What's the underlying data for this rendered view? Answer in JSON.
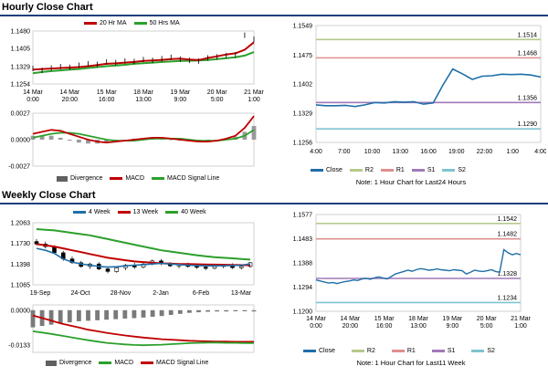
{
  "hourly": {
    "title": "Hourly Close Chart",
    "price_chart": {
      "type": "line",
      "legend": [
        {
          "name": "20 Hr MA",
          "color": "#c00000"
        },
        {
          "name": "50 Hrs MA",
          "color": "#2ca02c"
        }
      ],
      "y_ticks": [
        "1.1480",
        "1.1405",
        "1.1329",
        "1.1254"
      ],
      "ylim": [
        1.1254,
        1.148
      ],
      "x_ticks": [
        [
          "14 Mar",
          "0:00"
        ],
        [
          "14 Mar",
          "20:00"
        ],
        [
          "15 Mar",
          "16:00"
        ],
        [
          "18 Mar",
          "13:00"
        ],
        [
          "19 Mar",
          "9:00"
        ],
        [
          "20 Mar",
          "5:00"
        ],
        [
          "21 Mar",
          "1:00"
        ]
      ],
      "ma20": [
        1.1315,
        1.1318,
        1.132,
        1.1322,
        1.1324,
        1.1326,
        1.133,
        1.1335,
        1.134,
        1.1342,
        1.1345,
        1.1348,
        1.1352,
        1.1354,
        1.1357,
        1.136,
        1.1362,
        1.1358,
        1.1356,
        1.1365,
        1.1372,
        1.138,
        1.1385,
        1.14,
        1.1432
      ],
      "ma50": [
        1.13,
        1.1305,
        1.1309,
        1.1312,
        1.1315,
        1.1318,
        1.1322,
        1.1326,
        1.133,
        1.1333,
        1.1336,
        1.134,
        1.1343,
        1.1345,
        1.1348,
        1.135,
        1.1352,
        1.1353,
        1.1354,
        1.1356,
        1.136,
        1.1364,
        1.1368,
        1.1375,
        1.139
      ],
      "close": [
        1.132,
        1.1312,
        1.1322,
        1.1328,
        1.1325,
        1.1334,
        1.134,
        1.1338,
        1.1348,
        1.1345,
        1.1352,
        1.135,
        1.1358,
        1.1355,
        1.1362,
        1.1368,
        1.136,
        1.1355,
        1.1352,
        1.1365,
        1.137,
        1.1375,
        1.1378,
        1.1462,
        1.1445
      ]
    },
    "macd_chart": {
      "type": "line",
      "legend": [
        {
          "name": "Divergence",
          "color": "#808080",
          "kind": "bar"
        },
        {
          "name": "MACD",
          "color": "#c00000",
          "kind": "line"
        },
        {
          "name": "MACD Signal Line",
          "color": "#2ca02c",
          "kind": "line"
        }
      ],
      "y_ticks": [
        "0.0027",
        "0.0000",
        "-0.0027"
      ],
      "ylim": [
        -0.0027,
        0.0027
      ],
      "macd": [
        0.0006,
        0.0008,
        0.001,
        0.0009,
        0.0006,
        0.0003,
        0.0,
        -0.0002,
        -0.0003,
        -0.0002,
        -0.0001,
        0.0,
        0.0001,
        0.0002,
        0.0002,
        0.0001,
        0.0,
        -0.0001,
        -0.0002,
        -0.0002,
        -0.0001,
        0.0001,
        0.0004,
        0.0012,
        0.0024
      ],
      "signal": [
        0.0002,
        0.0004,
        0.0006,
        0.0007,
        0.0007,
        0.0006,
        0.0004,
        0.0002,
        0.0,
        -0.0001,
        -0.0001,
        -0.0001,
        0.0,
        0.0001,
        0.0001,
        0.0001,
        0.0001,
        0.0,
        -0.0001,
        -0.0001,
        -0.0001,
        0.0,
        0.0001,
        0.0004,
        0.001
      ],
      "divergence": [
        0.0004,
        0.0004,
        0.0004,
        0.0002,
        -0.0001,
        -0.0003,
        -0.0004,
        -0.0004,
        -0.0003,
        -0.0001,
        0.0,
        0.0001,
        0.0001,
        0.0001,
        0.0001,
        0.0,
        -0.0001,
        -0.0001,
        -0.0001,
        -0.0001,
        0.0,
        0.0001,
        0.0003,
        0.0008,
        0.0014
      ]
    },
    "pivot_chart": {
      "type": "line",
      "y_ticks": [
        "1.1549",
        "1.1475",
        "1.1402",
        "1.1329",
        "1.1256"
      ],
      "ylim": [
        1.1256,
        1.1549
      ],
      "x_ticks": [
        "4:00",
        "7:00",
        "10:00",
        "13:00",
        "16:00",
        "19:00",
        "22:00",
        "1:00",
        "4:00"
      ],
      "levels": [
        {
          "name": "R2",
          "value": 1.1514,
          "label": "1.1514",
          "color": "#b5c98a"
        },
        {
          "name": "R1",
          "value": 1.1468,
          "label": "1.1468",
          "color": "#e08f8f"
        },
        {
          "name": "S1",
          "value": 1.1356,
          "label": "1.1356",
          "color": "#a07ab8"
        },
        {
          "name": "S2",
          "value": 1.129,
          "label": "1.1290",
          "color": "#7fc4d1"
        }
      ],
      "close": [
        1.135,
        1.1348,
        1.1348,
        1.1349,
        1.1346,
        1.135,
        1.1356,
        1.1355,
        1.1358,
        1.1357,
        1.1358,
        1.1352,
        1.1355,
        1.14,
        1.144,
        1.1428,
        1.1414,
        1.1422,
        1.1423,
        1.1427,
        1.1426,
        1.1427,
        1.1425,
        1.142
      ],
      "legend": [
        {
          "name": "Close",
          "color": "#1f6fa8"
        },
        {
          "name": "R2",
          "color": "#b5c98a"
        },
        {
          "name": "R1",
          "color": "#e08f8f"
        },
        {
          "name": "S1",
          "color": "#a07ab8"
        },
        {
          "name": "S2",
          "color": "#7fc4d1"
        }
      ],
      "note": "Note: 1 Hour Chart for Last24 Hours"
    }
  },
  "weekly": {
    "title": "Weekly Close Chart",
    "price_chart": {
      "type": "line",
      "legend": [
        {
          "name": "4 Week",
          "color": "#1f6fa8"
        },
        {
          "name": "13 Week",
          "color": "#c00000"
        },
        {
          "name": "40 Week",
          "color": "#2ca02c"
        }
      ],
      "y_ticks": [
        "1.2063",
        "1.1730",
        "1.1398",
        "1.1065"
      ],
      "ylim": [
        1.1065,
        1.2063
      ],
      "x_ticks": [
        "19-Sep",
        "24-Oct",
        "28-Nov",
        "2-Jan",
        "6-Feb",
        "13-Mar"
      ],
      "w4": [
        1.165,
        1.162,
        1.157,
        1.148,
        1.143,
        1.14,
        1.138,
        1.136,
        1.135,
        1.1355,
        1.137,
        1.138,
        1.139,
        1.14,
        1.141,
        1.14,
        1.139,
        1.138,
        1.1375,
        1.137,
        1.137,
        1.1372,
        1.1375,
        1.138,
        1.14
      ],
      "w13": [
        1.172,
        1.17,
        1.168,
        1.165,
        1.162,
        1.159,
        1.156,
        1.153,
        1.15,
        1.148,
        1.146,
        1.144,
        1.143,
        1.142,
        1.141,
        1.1405,
        1.14,
        1.1398,
        1.1395,
        1.1392,
        1.139,
        1.1388,
        1.1385,
        1.1382,
        1.138
      ],
      "w40": [
        1.196,
        1.195,
        1.194,
        1.192,
        1.19,
        1.188,
        1.186,
        1.183,
        1.18,
        1.177,
        1.174,
        1.171,
        1.168,
        1.165,
        1.162,
        1.16,
        1.158,
        1.156,
        1.154,
        1.1525,
        1.151,
        1.15,
        1.149,
        1.148,
        1.147
      ],
      "candles": [
        {
          "o": 1.176,
          "h": 1.18,
          "l": 1.17,
          "c": 1.172
        },
        {
          "o": 1.172,
          "h": 1.176,
          "l": 1.165,
          "c": 1.168
        },
        {
          "o": 1.168,
          "h": 1.17,
          "l": 1.156,
          "c": 1.158
        },
        {
          "o": 1.158,
          "h": 1.161,
          "l": 1.145,
          "c": 1.148
        },
        {
          "o": 1.148,
          "h": 1.152,
          "l": 1.14,
          "c": 1.142
        },
        {
          "o": 1.142,
          "h": 1.145,
          "l": 1.134,
          "c": 1.136
        },
        {
          "o": 1.136,
          "h": 1.142,
          "l": 1.132,
          "c": 1.14
        },
        {
          "o": 1.14,
          "h": 1.143,
          "l": 1.13,
          "c": 1.132
        },
        {
          "o": 1.132,
          "h": 1.136,
          "l": 1.125,
          "c": 1.128
        },
        {
          "o": 1.128,
          "h": 1.136,
          "l": 1.126,
          "c": 1.134
        },
        {
          "o": 1.134,
          "h": 1.14,
          "l": 1.13,
          "c": 1.138
        },
        {
          "o": 1.138,
          "h": 1.142,
          "l": 1.132,
          "c": 1.135
        },
        {
          "o": 1.135,
          "h": 1.142,
          "l": 1.133,
          "c": 1.14
        },
        {
          "o": 1.14,
          "h": 1.147,
          "l": 1.138,
          "c": 1.145
        },
        {
          "o": 1.145,
          "h": 1.148,
          "l": 1.138,
          "c": 1.14
        },
        {
          "o": 1.14,
          "h": 1.143,
          "l": 1.135,
          "c": 1.137
        },
        {
          "o": 1.137,
          "h": 1.141,
          "l": 1.133,
          "c": 1.139
        },
        {
          "o": 1.139,
          "h": 1.142,
          "l": 1.134,
          "c": 1.136
        },
        {
          "o": 1.136,
          "h": 1.14,
          "l": 1.132,
          "c": 1.135
        },
        {
          "o": 1.135,
          "h": 1.138,
          "l": 1.13,
          "c": 1.133
        },
        {
          "o": 1.133,
          "h": 1.138,
          "l": 1.131,
          "c": 1.136
        },
        {
          "o": 1.136,
          "h": 1.14,
          "l": 1.133,
          "c": 1.138
        },
        {
          "o": 1.138,
          "h": 1.141,
          "l": 1.132,
          "c": 1.134
        },
        {
          "o": 1.134,
          "h": 1.138,
          "l": 1.131,
          "c": 1.136
        },
        {
          "o": 1.136,
          "h": 1.143,
          "l": 1.134,
          "c": 1.142
        }
      ]
    },
    "macd_chart": {
      "type": "line",
      "legend": [
        {
          "name": "Divergence",
          "color": "#808080",
          "kind": "bar"
        },
        {
          "name": "MACD",
          "color": "#2ca02c",
          "kind": "line"
        },
        {
          "name": "MACD Signal Line",
          "color": "#c00000",
          "kind": "line"
        }
      ],
      "y_ticks": [
        "0.0000",
        "-0.0133"
      ],
      "ylim": [
        -0.016,
        0.002
      ],
      "macd": [
        -0.008,
        -0.0085,
        -0.009,
        -0.0096,
        -0.0102,
        -0.0108,
        -0.0114,
        -0.0119,
        -0.0124,
        -0.0127,
        -0.013,
        -0.0132,
        -0.0133,
        -0.0132,
        -0.0131,
        -0.0129,
        -0.0127,
        -0.0125,
        -0.0124,
        -0.0123,
        -0.0123,
        -0.0124,
        -0.0124,
        -0.0125,
        -0.0125
      ],
      "signal": [
        -0.002,
        -0.003,
        -0.004,
        -0.005,
        -0.0058,
        -0.0066,
        -0.0074,
        -0.008,
        -0.0086,
        -0.0091,
        -0.0096,
        -0.01,
        -0.0104,
        -0.0107,
        -0.011,
        -0.0112,
        -0.0114,
        -0.0116,
        -0.0117,
        -0.0118,
        -0.0119,
        -0.0119,
        -0.012,
        -0.012,
        -0.012
      ],
      "divergence": [
        -0.0065,
        -0.006,
        -0.0055,
        -0.005,
        -0.0046,
        -0.0042,
        -0.004,
        -0.0038,
        -0.0036,
        -0.0034,
        -0.0032,
        -0.003,
        -0.0028,
        -0.0025,
        -0.0022,
        -0.0018,
        -0.0014,
        -0.001,
        -0.0008,
        -0.0006,
        -0.0005,
        -0.0005,
        -0.0004,
        -0.0004,
        -0.0005
      ]
    },
    "pivot_chart": {
      "type": "line",
      "y_ticks": [
        "1.1577",
        "1.1483",
        "1.1388",
        "1.1294",
        "1.1200"
      ],
      "ylim": [
        1.12,
        1.1577
      ],
      "x_ticks": [
        [
          "14 Mar",
          "0:00"
        ],
        [
          "14 Mar",
          "20:00"
        ],
        [
          "15 Mar",
          "16:00"
        ],
        [
          "18 Mar",
          "13:00"
        ],
        [
          "19 Mar",
          "9:00"
        ],
        [
          "20 Mar",
          "5:00"
        ],
        [
          "21 Mar",
          "1:00"
        ]
      ],
      "levels": [
        {
          "name": "R2",
          "value": 1.1542,
          "label": "1.1542",
          "color": "#b5c98a"
        },
        {
          "name": "R1",
          "value": 1.1482,
          "label": "1.1482",
          "color": "#e08f8f"
        },
        {
          "name": "S1",
          "value": 1.1328,
          "label": "1.1328",
          "color": "#a07ab8"
        },
        {
          "name": "S2",
          "value": 1.1234,
          "label": "1.1234",
          "color": "#7fc4d1"
        }
      ],
      "close": [
        1.1322,
        1.1318,
        1.1314,
        1.131,
        1.1312,
        1.1308,
        1.1312,
        1.1316,
        1.1318,
        1.1322,
        1.132,
        1.1326,
        1.1328,
        1.1325,
        1.133,
        1.1334,
        1.133,
        1.1326,
        1.1335,
        1.1345,
        1.135,
        1.1355,
        1.136,
        1.1356,
        1.1362,
        1.1366,
        1.1364,
        1.136,
        1.1362,
        1.1365,
        1.1362,
        1.136,
        1.1358,
        1.1362,
        1.136,
        1.1358,
        1.1345,
        1.1352,
        1.136,
        1.1357,
        1.1355,
        1.1358,
        1.1362,
        1.1355,
        1.1352,
        1.144,
        1.1428,
        1.142,
        1.1425,
        1.142
      ],
      "legend": [
        {
          "name": "Close",
          "color": "#1f6fa8"
        },
        {
          "name": "R2",
          "color": "#b5c98a"
        },
        {
          "name": "R1",
          "color": "#e08f8f"
        },
        {
          "name": "S1",
          "color": "#a07ab8"
        },
        {
          "name": "S2",
          "color": "#7fc4d1"
        }
      ],
      "note": "Note: 1 Hour Chart for Last11 Week"
    }
  }
}
